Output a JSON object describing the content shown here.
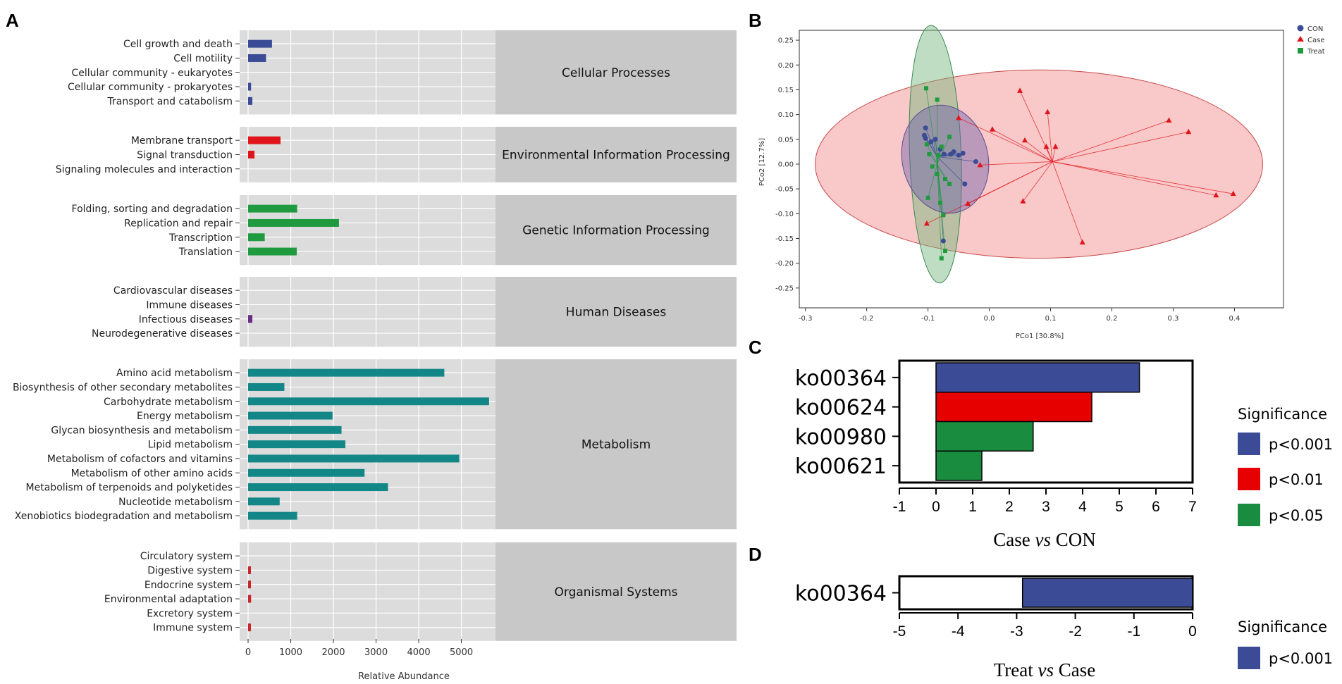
{
  "panel_labels": {
    "a": "A",
    "b": "B",
    "c": "C",
    "d": "D"
  },
  "chart_data": [
    {
      "id": "A",
      "type": "bar",
      "orientation": "horizontal",
      "xlabel": "Relative Abundance",
      "xlim": [
        0,
        5800
      ],
      "xticks": [
        0,
        1000,
        2000,
        3000,
        4000,
        5000
      ],
      "groups": [
        {
          "name": "Cellular Processes",
          "color": "#3b4b96",
          "items": [
            {
              "label": "Cell growth and death",
              "value": 560
            },
            {
              "label": "Cell motility",
              "value": 420
            },
            {
              "label": "Cellular community - eukaryotes",
              "value": 0
            },
            {
              "label": "Cellular community - prokaryotes",
              "value": 70
            },
            {
              "label": "Transport and catabolism",
              "value": 100
            }
          ]
        },
        {
          "name": "Environmental Information Processing",
          "color": "#e0151b",
          "items": [
            {
              "label": "Membrane transport",
              "value": 760
            },
            {
              "label": "Signal transduction",
              "value": 150
            },
            {
              "label": "Signaling molecules and interaction",
              "value": 0
            }
          ]
        },
        {
          "name": "Genetic Information Processing",
          "color": "#1f9a3f",
          "items": [
            {
              "label": "Folding, sorting and degradation",
              "value": 1150
            },
            {
              "label": "Replication and repair",
              "value": 2130
            },
            {
              "label": "Transcription",
              "value": 390
            },
            {
              "label": "Translation",
              "value": 1140
            }
          ]
        },
        {
          "name": "Human Diseases",
          "color": "#6a2d86",
          "items": [
            {
              "label": "Cardiovascular diseases",
              "value": 0
            },
            {
              "label": "Immune diseases",
              "value": 0
            },
            {
              "label": "Infectious diseases",
              "value": 100
            },
            {
              "label": "Neurodegenerative diseases",
              "value": 0
            }
          ]
        },
        {
          "name": "Metabolism",
          "color": "#138787",
          "items": [
            {
              "label": "Amino acid metabolism",
              "value": 4600
            },
            {
              "label": "Biosynthesis of other secondary metabolites",
              "value": 850
            },
            {
              "label": "Carbohydrate metabolism",
              "value": 5650
            },
            {
              "label": "Energy metabolism",
              "value": 1980
            },
            {
              "label": "Glycan biosynthesis and metabolism",
              "value": 2190
            },
            {
              "label": "Lipid metabolism",
              "value": 2280
            },
            {
              "label": "Metabolism of cofactors and vitamins",
              "value": 4950
            },
            {
              "label": "Metabolism of other amino acids",
              "value": 2730
            },
            {
              "label": "Metabolism of terpenoids and polyketides",
              "value": 3280
            },
            {
              "label": "Nucleotide metabolism",
              "value": 740
            },
            {
              "label": "Xenobiotics biodegradation and metabolism",
              "value": 1150
            }
          ]
        },
        {
          "name": "Organismal Systems",
          "color": "#c8262a",
          "items": [
            {
              "label": "Circulatory system",
              "value": 0
            },
            {
              "label": "Digestive system",
              "value": 40
            },
            {
              "label": "Endocrine system",
              "value": 40
            },
            {
              "label": "Environmental adaptation",
              "value": 70
            },
            {
              "label": "Excretory system",
              "value": 0
            },
            {
              "label": "Immune system",
              "value": 30
            }
          ]
        }
      ]
    },
    {
      "id": "B",
      "type": "scatter",
      "xlabel": "PCo1 [30.8%]",
      "ylabel": "PCo2 [12.7%]",
      "xlim": [
        -0.31,
        0.48
      ],
      "ylim": [
        -0.29,
        0.27
      ],
      "xticks": [
        -0.3,
        -0.2,
        -0.1,
        0.0,
        0.1,
        0.2,
        0.3,
        0.4
      ],
      "yticks": [
        0.25,
        0.2,
        0.15,
        0.1,
        0.05,
        0.0,
        -0.05,
        -0.1,
        -0.15,
        -0.2,
        -0.25
      ],
      "tick_labels_x": [
        "-0.3",
        "-0.2",
        "-0.1",
        "0.0",
        "0.1",
        "0.2",
        "0.3",
        "0.4"
      ],
      "tick_labels_y": [
        "0.25",
        "0.20",
        "0.15",
        "0.10",
        "0.05",
        "0.00",
        "-0.05",
        "-0.10",
        "-0.15",
        "-0.20",
        "-0.25"
      ],
      "series": [
        {
          "name": "CON",
          "marker": "circle",
          "color": "#3b4b96",
          "centroid": [
            -0.085,
            0.015
          ],
          "ellipse": {
            "cx": -0.072,
            "cy": 0.01,
            "rx": 0.07,
            "ry": 0.11,
            "angle_deg": -13
          },
          "points": [
            [
              -0.104,
              0.073
            ],
            [
              -0.106,
              0.058
            ],
            [
              -0.104,
              0.052
            ],
            [
              -0.095,
              0.045
            ],
            [
              -0.088,
              0.05
            ],
            [
              -0.08,
              0.03
            ],
            [
              -0.074,
              0.02
            ],
            [
              -0.063,
              0.02
            ],
            [
              -0.058,
              0.025
            ],
            [
              -0.05,
              0.018
            ],
            [
              -0.043,
              0.022
            ],
            [
              -0.022,
              0.005
            ],
            [
              -0.04,
              -0.04
            ],
            [
              -0.075,
              -0.155
            ]
          ]
        },
        {
          "name": "Case",
          "marker": "triangle",
          "color": "#e0151b",
          "centroid": [
            0.103,
            0.005
          ],
          "ellipse": {
            "cx": 0.081,
            "cy": 0.0,
            "rx": 0.365,
            "ry": 0.19,
            "angle_deg": 0
          },
          "points": [
            [
              -0.05,
              0.093
            ],
            [
              0.005,
              0.07
            ],
            [
              0.05,
              0.148
            ],
            [
              0.058,
              0.048
            ],
            [
              0.093,
              0.035
            ],
            [
              0.095,
              0.105
            ],
            [
              0.108,
              0.035
            ],
            [
              0.293,
              0.088
            ],
            [
              0.325,
              0.065
            ],
            [
              0.37,
              -0.063
            ],
            [
              0.398,
              -0.06
            ],
            [
              0.055,
              -0.075
            ],
            [
              -0.035,
              -0.08
            ],
            [
              -0.102,
              -0.12
            ],
            [
              0.152,
              -0.158
            ],
            [
              -0.015,
              -0.002
            ]
          ]
        },
        {
          "name": "Treat",
          "marker": "square",
          "color": "#1f9a3f",
          "centroid": [
            -0.085,
            0.0
          ],
          "ellipse": {
            "cx": -0.088,
            "cy": 0.02,
            "rx": 0.042,
            "ry": 0.26,
            "angle_deg": -2
          },
          "points": [
            [
              -0.103,
              0.153
            ],
            [
              -0.085,
              0.13
            ],
            [
              -0.065,
              0.055
            ],
            [
              -0.078,
              0.035
            ],
            [
              -0.102,
              0.04
            ],
            [
              -0.098,
              0.02
            ],
            [
              -0.083,
              0.018
            ],
            [
              -0.093,
              -0.005
            ],
            [
              -0.085,
              -0.02
            ],
            [
              -0.072,
              -0.03
            ],
            [
              -0.065,
              -0.04
            ],
            [
              -0.1,
              -0.068
            ],
            [
              -0.08,
              -0.078
            ],
            [
              -0.075,
              -0.103
            ],
            [
              -0.072,
              -0.175
            ],
            [
              -0.078,
              -0.19
            ]
          ]
        }
      ],
      "legend": [
        "CON",
        "Case",
        "Treat"
      ]
    },
    {
      "id": "C",
      "type": "bar",
      "orientation": "horizontal",
      "title": "Case vs CON",
      "xlim": [
        -1,
        7
      ],
      "xticks": [
        -1,
        0,
        1,
        2,
        3,
        4,
        5,
        6,
        7
      ],
      "categories": [
        "ko00364",
        "ko00624",
        "ko00980",
        "ko00621"
      ],
      "values": [
        5.55,
        4.25,
        2.65,
        1.25
      ],
      "significance": [
        "p<0.001",
        "p<0.01",
        "p<0.05",
        "p<0.05"
      ],
      "colors": [
        "#3b4b96",
        "#e60000",
        "#1a8c3f",
        "#1a8c3f"
      ]
    },
    {
      "id": "D",
      "type": "bar",
      "orientation": "horizontal",
      "title": "Treat vs Case",
      "xlim": [
        -5,
        0
      ],
      "xticks": [
        -5,
        -4,
        -3,
        -2,
        -1,
        0
      ],
      "categories": [
        "ko00364"
      ],
      "values": [
        -2.9
      ],
      "significance": [
        "p<0.001"
      ],
      "colors": [
        "#3b4b96"
      ]
    }
  ],
  "legend_c": {
    "title": "Significance",
    "items": [
      {
        "label": "p<0.001",
        "color": "#3b4b96"
      },
      {
        "label": "p<0.01",
        "color": "#e60000"
      },
      {
        "label": "p<0.05",
        "color": "#1a8c3f"
      }
    ]
  },
  "legend_d": {
    "title": "Significance",
    "items": [
      {
        "label": "p<0.001",
        "color": "#3b4b96"
      }
    ]
  },
  "titles": {
    "c_prefix": "Case ",
    "c_vs": "vs",
    "c_suffix": " CON",
    "d_prefix": "Treat ",
    "d_vs": "vs",
    "d_suffix": " Case"
  }
}
